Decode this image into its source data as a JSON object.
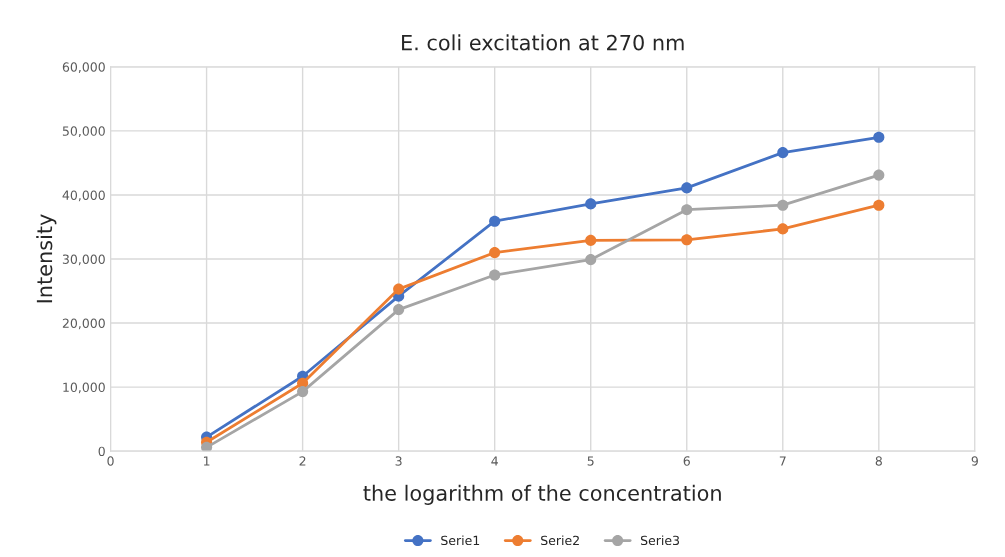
{
  "chart_data": {
    "type": "line",
    "title": "E. coli excitation at 270 nm",
    "xlabel": "the logarithm of the concentration",
    "ylabel": "Intensity",
    "x": [
      1,
      2,
      3,
      4,
      5,
      6,
      7,
      8
    ],
    "series": [
      {
        "name": "Serie1",
        "color": "#4472c4",
        "values": [
          2200,
          11700,
          24200,
          35900,
          38600,
          41100,
          46600,
          49000
        ]
      },
      {
        "name": "Serie2",
        "color": "#ed7d31",
        "values": [
          1400,
          10600,
          25300,
          31000,
          32900,
          33000,
          34700,
          38400
        ]
      },
      {
        "name": "Serie3",
        "color": "#a5a5a5",
        "values": [
          600,
          9300,
          22100,
          27500,
          29900,
          37700,
          38400,
          43100
        ]
      }
    ],
    "xlim": [
      0,
      9
    ],
    "xticks": [
      0,
      1,
      2,
      3,
      4,
      5,
      6,
      7,
      8,
      9
    ],
    "ylim": [
      0,
      60000
    ],
    "yticks": [
      0,
      {
        "value": 10000,
        "label": "10,000"
      },
      {
        "value": 20000,
        "label": "20,000"
      },
      {
        "value": 30000,
        "label": "30,000"
      },
      {
        "value": 40000,
        "label": "40,000"
      },
      {
        "value": 50000,
        "label": "50,000"
      },
      {
        "value": 60000,
        "label": "60,000"
      }
    ],
    "grid": true,
    "legend": "bottom",
    "marker": "circle",
    "line_style": "solid"
  }
}
